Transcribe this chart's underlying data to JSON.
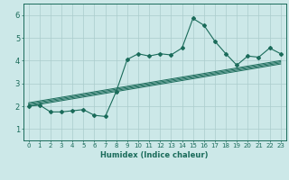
{
  "xlabel": "Humidex (Indice chaleur)",
  "ylabel": "",
  "bg_color": "#cce8e8",
  "grid_color": "#aacccc",
  "line_color": "#1a6b5a",
  "x_data": [
    0,
    1,
    2,
    3,
    4,
    5,
    6,
    7,
    8,
    9,
    10,
    11,
    12,
    13,
    14,
    15,
    16,
    17,
    18,
    19,
    20,
    21,
    22,
    23
  ],
  "y_main": [
    2.0,
    2.05,
    1.75,
    1.75,
    1.8,
    1.85,
    1.6,
    1.55,
    2.65,
    4.05,
    4.3,
    4.2,
    4.3,
    4.25,
    4.55,
    5.85,
    5.55,
    4.85,
    4.3,
    3.8,
    4.2,
    4.15,
    4.55,
    4.3
  ],
  "reg_lines": [
    [
      2.0,
      3.85
    ],
    [
      2.05,
      3.9
    ],
    [
      2.1,
      3.95
    ],
    [
      2.15,
      4.0
    ]
  ],
  "xlim": [
    -0.5,
    23.5
  ],
  "ylim": [
    0.5,
    6.5
  ],
  "yticks": [
    1,
    2,
    3,
    4,
    5,
    6
  ],
  "fontsize_ticks": 5,
  "fontsize_xlabel": 6
}
